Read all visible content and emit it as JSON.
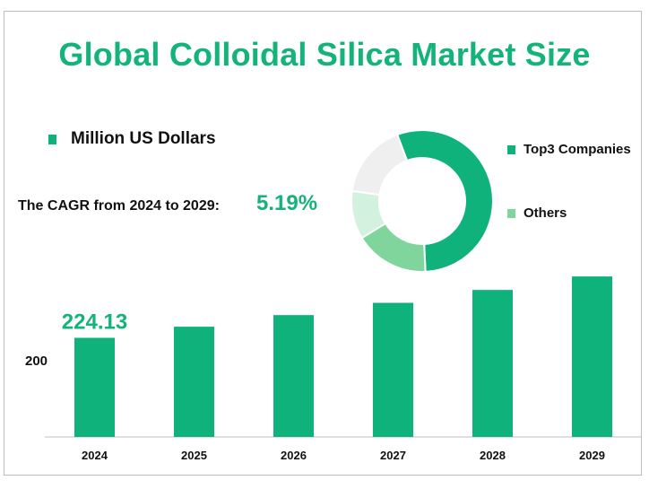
{
  "title": "Global Colloidal Silica Market Size",
  "unit_label": "Million US Dollars",
  "cagr": {
    "label": "The CAGR from 2024 to 2029:",
    "value": "5.19%"
  },
  "colors": {
    "primary": "#0eb27a",
    "title": "#13b37a",
    "others": "#7fd59b",
    "light": "#d3f1df",
    "grey": "#efefef"
  },
  "chart_data": [
    {
      "type": "bar",
      "categories": [
        "2024",
        "2025",
        "2026",
        "2027",
        "2028",
        "2029"
      ],
      "values": [
        224.13,
        235.8,
        248.0,
        260.9,
        274.4,
        288.6
      ],
      "ylim": [
        120,
        300
      ],
      "y_tick_labels": [
        {
          "value": 200,
          "label": "200"
        }
      ],
      "data_labels": [
        {
          "index": 0,
          "text": "224.13"
        }
      ],
      "grid": false
    },
    {
      "type": "pie",
      "variant": "donut",
      "slices": [
        {
          "label": "Top3 Companies",
          "value": 55,
          "color": "#0eb27a"
        },
        {
          "label": "Others",
          "value": 17,
          "color": "#7fd59b"
        },
        {
          "label": "",
          "value": 11,
          "color": "#d3f1df"
        },
        {
          "label": "",
          "value": 17,
          "color": "#efefef"
        }
      ],
      "legend": [
        {
          "label": "Top3 Companies",
          "color": "#0eb27a"
        },
        {
          "label": "Others",
          "color": "#7fd59b"
        }
      ],
      "legend_position": "right"
    }
  ]
}
